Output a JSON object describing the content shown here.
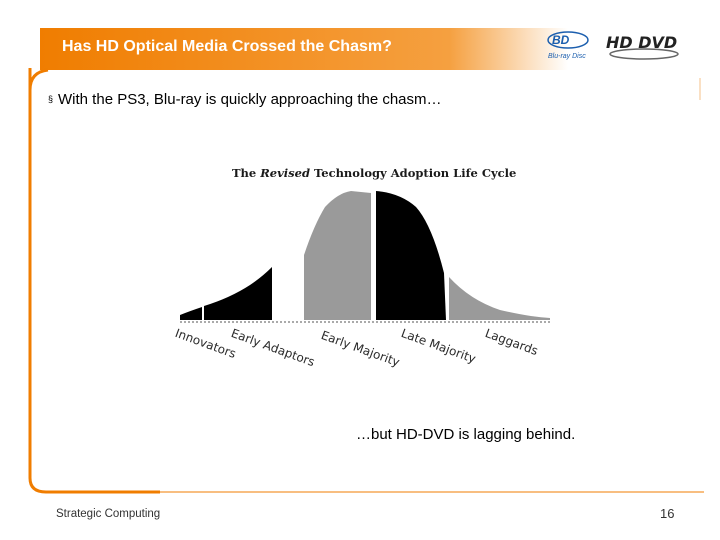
{
  "slide": {
    "title": "Has HD Optical Media Crossed the Chasm?",
    "bullet": "With the PS3, Blu-ray is quickly approaching the chasm…",
    "bullet_marker": "§",
    "note": "…but HD-DVD is lagging behind.",
    "footer_left": "Strategic Computing",
    "page_number": "16"
  },
  "logos": {
    "bluray_text": "Blu-ray Disc",
    "hddvd_text": "HD DVD"
  },
  "figure": {
    "title_prefix": "The ",
    "title_emph": "Revised",
    "title_suffix": " Technology Adoption Life Cycle",
    "segments": [
      "Innovators",
      "Early Adaptors",
      "Early Majority",
      "Late Majority",
      "Laggards"
    ]
  },
  "colors": {
    "accent_orange": "#f07d00",
    "curve_dark": "#000000",
    "curve_gray": "#9a9a9a"
  }
}
